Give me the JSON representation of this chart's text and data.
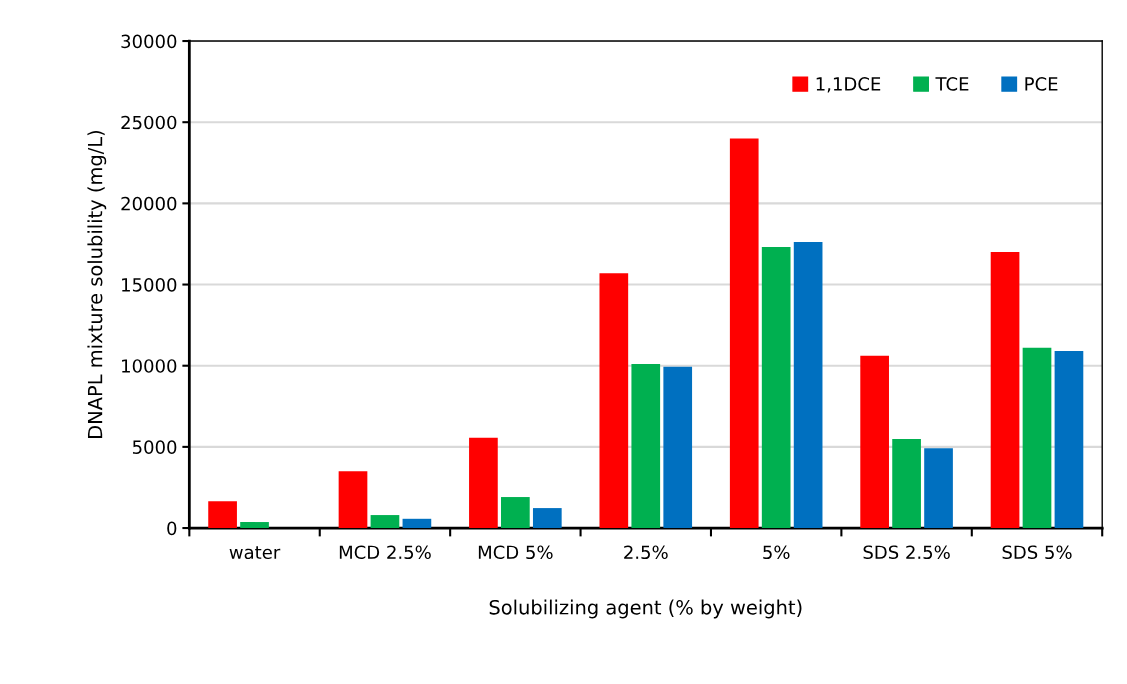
{
  "chart_data": {
    "type": "bar",
    "xlabel": "Solubilizing agent (% by weight)",
    "ylabel": "DNAPL mixture solubility (mg/L)",
    "categories": [
      "water",
      "MCD 2.5%",
      "MCD 5%",
      "2.5%",
      "5%",
      "SDS 2.5%",
      "SDS 5%"
    ],
    "series": [
      {
        "name": "1,1DCE",
        "color": "#ff0000",
        "values": [
          1650,
          3500,
          5570,
          15690,
          24000,
          10620,
          17000
        ]
      },
      {
        "name": "TCE",
        "color": "#00b050",
        "values": [
          370,
          800,
          1910,
          10100,
          17310,
          5480,
          11110
        ]
      },
      {
        "name": "PCE",
        "color": "#0070c0",
        "values": [
          0,
          570,
          1230,
          9940,
          17620,
          4910,
          10900
        ]
      }
    ],
    "ylim": [
      0,
      30000
    ],
    "yticks": [
      0,
      5000,
      10000,
      15000,
      20000,
      25000,
      30000
    ],
    "grid": "y",
    "legend": "top right"
  }
}
